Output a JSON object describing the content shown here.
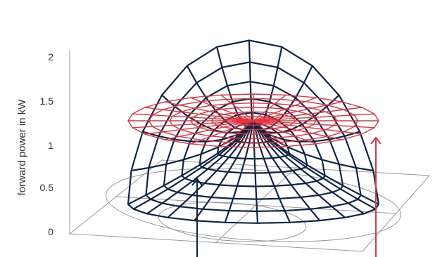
{
  "chart_data": {
    "type": "surface",
    "ylabel": "forward power in kW",
    "zlim": [
      0,
      2
    ],
    "z_ticks": [
      "0",
      "0.5",
      "1",
      "1.5",
      "2"
    ],
    "series": [
      {
        "shape": "bowl-shaped mesh surface",
        "colour": "#0d2547",
        "center_value": 1.3,
        "outer_ring_value": 0.35,
        "rise_toward_back": 2.0
      },
      {
        "shape": "flat circular disc mesh",
        "colour": "#e8323c",
        "value": 1.3
      }
    ],
    "floor_circles": 2,
    "arrows": [
      {
        "colour": "#0d2547",
        "direction": "up"
      },
      {
        "colour": "#e8323c",
        "direction": "up"
      }
    ]
  }
}
